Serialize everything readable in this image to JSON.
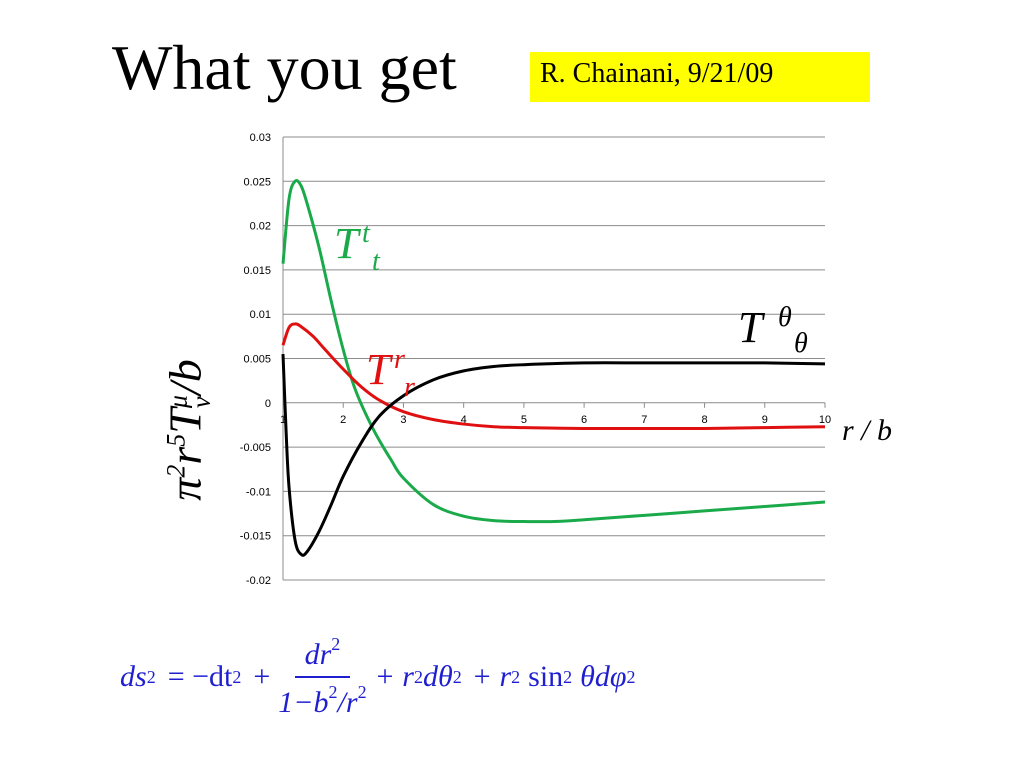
{
  "slide": {
    "title": "What you get",
    "credit": "R. Chainani, 9/21/09"
  },
  "labels": {
    "y_axis": {
      "prefix": "π",
      "exp1": "2",
      "r": "r",
      "exp2": "5",
      "T": "T",
      "mu": "μ",
      "nu": "ν",
      "suffix": "/b"
    },
    "x_unit": "r / b",
    "series_tt": {
      "main": "T",
      "sup": "t",
      "sub": "t"
    },
    "series_rr": {
      "main": "T",
      "sup": "r",
      "sub": "r"
    },
    "series_thth": {
      "main": "T",
      "sup": "θ",
      "sub": "θ"
    }
  },
  "equation": {
    "lhs": "ds",
    "lhs_exp": "2",
    "eq": "= −dt",
    "dt_exp": "2",
    "plus1": "+",
    "frac_num": "dr",
    "frac_num_exp": "2",
    "frac_den": "1−b",
    "frac_den_exp1": "2",
    "frac_den_slash": "/r",
    "frac_den_exp2": "2",
    "rest": "+ r",
    "rest_exp1": "2",
    "rest2": "dθ",
    "rest2_exp": "2",
    "rest3": "+ r",
    "rest3_exp": "2",
    "rest4": "sin",
    "rest4_exp": "2",
    "rest5": "θdφ",
    "rest5_exp": "2"
  },
  "chart_data": {
    "type": "line",
    "title": "",
    "xlabel": "r / b",
    "ylabel": "π²r⁵T^μ_ν/b",
    "xlim": [
      1,
      10
    ],
    "ylim": [
      -0.02,
      0.03
    ],
    "x_ticks": [
      1,
      2,
      3,
      4,
      5,
      6,
      7,
      8,
      9,
      10
    ],
    "y_ticks": [
      "0.03",
      "0.025",
      "0.02",
      "0.015",
      "0.01",
      "0.005",
      "0",
      "-0.005",
      "-0.01",
      "-0.015",
      "-0.02"
    ],
    "y_tick_values": [
      0.03,
      0.025,
      0.02,
      0.015,
      0.01,
      0.005,
      0,
      -0.005,
      -0.01,
      -0.015,
      -0.02
    ],
    "grid": true,
    "series": [
      {
        "name": "T^t_t",
        "color": "#1aaa4a",
        "x": [
          1.0,
          1.1,
          1.2,
          1.3,
          1.4,
          1.6,
          1.8,
          2.0,
          2.2,
          2.5,
          2.8,
          3.0,
          3.5,
          4.0,
          4.5,
          5.0,
          5.5,
          6.0,
          7.0,
          8.0,
          9.0,
          10.0
        ],
        "y": [
          0.0157,
          0.023,
          0.025,
          0.0245,
          0.0225,
          0.0175,
          0.0115,
          0.006,
          0.0015,
          -0.003,
          -0.0065,
          -0.0085,
          -0.0115,
          -0.0128,
          -0.0133,
          -0.0134,
          -0.0134,
          -0.0132,
          -0.0127,
          -0.0122,
          -0.0117,
          -0.0112
        ]
      },
      {
        "name": "T^r_r",
        "color": "#e01010",
        "x": [
          1.0,
          1.1,
          1.2,
          1.3,
          1.5,
          1.7,
          2.0,
          2.3,
          2.6,
          3.0,
          3.5,
          4.0,
          4.5,
          5.0,
          6.0,
          7.0,
          8.0,
          9.0,
          10.0
        ],
        "y": [
          0.0065,
          0.0085,
          0.0089,
          0.0086,
          0.0075,
          0.006,
          0.0038,
          0.0018,
          0.0003,
          -0.001,
          -0.0019,
          -0.0024,
          -0.0027,
          -0.0028,
          -0.0029,
          -0.0029,
          -0.0029,
          -0.0028,
          -0.0027
        ]
      },
      {
        "name": "T^θ_θ",
        "color": "#000000",
        "x": [
          1.0,
          1.05,
          1.1,
          1.2,
          1.3,
          1.4,
          1.6,
          1.8,
          2.0,
          2.3,
          2.6,
          3.0,
          3.5,
          4.0,
          4.5,
          5.0,
          6.0,
          7.0,
          8.0,
          9.0,
          10.0
        ],
        "y": [
          0.0055,
          -0.003,
          -0.0095,
          -0.0155,
          -0.0171,
          -0.0168,
          -0.0145,
          -0.0115,
          -0.0083,
          -0.0045,
          -0.0015,
          0.0008,
          0.0026,
          0.0036,
          0.0041,
          0.0043,
          0.0045,
          0.0045,
          0.0045,
          0.0045,
          0.0044
        ]
      }
    ]
  }
}
